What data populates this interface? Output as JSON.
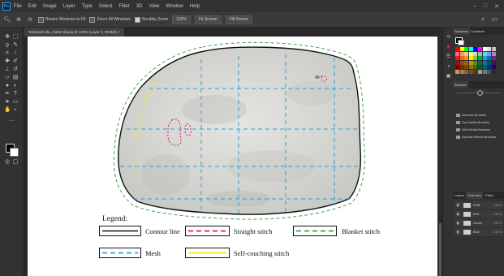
{
  "menubar": {
    "logo": "Ps",
    "items": [
      "File",
      "Edit",
      "Image",
      "Layer",
      "Type",
      "Select",
      "Filter",
      "3D",
      "View",
      "Window",
      "Help"
    ]
  },
  "options": {
    "resize_windows": "Resize Windows to Fit",
    "zoom_all": "Zoom All Windows",
    "scrubby_zoom": "Scrubby Zoom",
    "zoom_100": "100%",
    "fit_screen": "Fit Screen",
    "fill_screen": "Fill Screen"
  },
  "document": {
    "tab_label": "Tarlanesh.tile_matter.tif.png @ 100% (Layer 0, RGB/8) ×"
  },
  "legend": {
    "title": "Legend:",
    "items": [
      {
        "label": "Contour line",
        "color": "#111111",
        "style": "solid"
      },
      {
        "label": "Straight stitch",
        "color": "#e8174e",
        "style": "dashed"
      },
      {
        "label": "Blanket stitch",
        "color": "#3aa845",
        "style": "dashed"
      },
      {
        "label": "Mesh",
        "color": "#29a3d6",
        "style": "dashed"
      },
      {
        "label": "Self-couching stitch",
        "color": "#f2e614",
        "style": "solid"
      }
    ]
  },
  "panels": {
    "swatches_tab": "Swatches",
    "gradients_tab": "Gradients",
    "brushes_tab": "Brushes",
    "brush_folders": [
      "General Brushes",
      "Dry Media Brushes",
      "Wet Media Brushes",
      "Special Effects Brushes"
    ],
    "bottom_tabs": [
      "Layers",
      "Channels",
      "Paths"
    ],
    "channels": [
      {
        "name": "RGB",
        "key": "Ctrl+2"
      },
      {
        "name": "Red",
        "key": "Ctrl+3"
      },
      {
        "name": "Green",
        "key": "Ctrl+4"
      },
      {
        "name": "Blue",
        "key": "Ctrl+5"
      }
    ]
  },
  "icons": {
    "search": "search-icon",
    "workspace": "workspace-icon",
    "minimize": "minimize-icon",
    "maximize": "maximize-icon",
    "close": "close-icon"
  }
}
